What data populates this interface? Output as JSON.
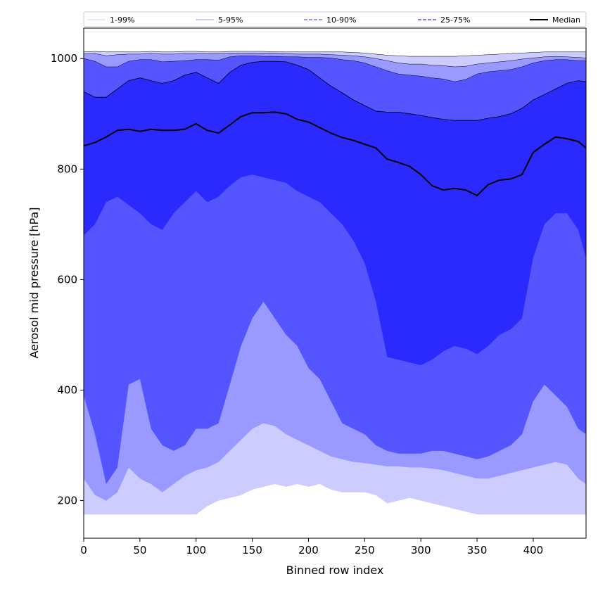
{
  "chart_data": {
    "type": "area",
    "title": "",
    "xlabel": "Binned row index",
    "ylabel": "Aerosol mid pressure [hPa]",
    "xlim": [
      0,
      447
    ],
    "ylim": [
      132,
      1055
    ],
    "xticks": [
      0,
      50,
      100,
      150,
      200,
      250,
      300,
      350,
      400
    ],
    "yticks": [
      200,
      400,
      600,
      800,
      1000
    ],
    "legend": {
      "position": "top",
      "entries": [
        {
          "label": "1-99%",
          "color": "#ccccff",
          "style": "thin"
        },
        {
          "label": "5-95%",
          "color": "#9999ff",
          "style": "thin"
        },
        {
          "label": "10-90%",
          "color": "#7777ff",
          "style": "dashed"
        },
        {
          "label": "25-75%",
          "color": "#5555ff",
          "style": "dashed"
        },
        {
          "label": "Median",
          "color": "#000000",
          "style": "solid"
        }
      ]
    },
    "colors": {
      "band_1_99": "#ccccff",
      "band_5_95": "#9999ff",
      "band_10_90": "#5555ff",
      "band_25_75": "#2a2aff",
      "median": "#000000"
    },
    "x": [
      0,
      10,
      20,
      30,
      40,
      50,
      60,
      70,
      80,
      90,
      100,
      110,
      120,
      130,
      140,
      150,
      160,
      170,
      180,
      190,
      200,
      210,
      220,
      230,
      240,
      250,
      260,
      270,
      280,
      290,
      300,
      310,
      320,
      330,
      340,
      350,
      360,
      370,
      380,
      390,
      400,
      410,
      420,
      430,
      440,
      447
    ],
    "series": [
      {
        "name": "1-99%",
        "role": "low",
        "values": [
          175,
          175,
          175,
          175,
          175,
          175,
          175,
          175,
          175,
          175,
          175,
          190,
          200,
          205,
          210,
          220,
          225,
          230,
          225,
          230,
          225,
          230,
          220,
          215,
          215,
          215,
          210,
          195,
          200,
          205,
          200,
          195,
          190,
          185,
          180,
          175,
          175,
          175,
          175,
          175,
          175,
          175,
          175,
          175,
          175,
          175
        ]
      },
      {
        "name": "1-99%",
        "role": "high",
        "values": [
          1012,
          1013,
          1012,
          1012,
          1012,
          1012,
          1013,
          1012,
          1012,
          1013,
          1013,
          1012,
          1012,
          1013,
          1013,
          1013,
          1013,
          1012,
          1012,
          1012,
          1012,
          1012,
          1012,
          1012,
          1011,
          1010,
          1008,
          1006,
          1005,
          1004,
          1004,
          1004,
          1004,
          1004,
          1005,
          1006,
          1007,
          1008,
          1009,
          1010,
          1011,
          1012,
          1012,
          1012,
          1012,
          1012
        ]
      },
      {
        "name": "5-95%",
        "role": "low",
        "values": [
          240,
          210,
          200,
          215,
          260,
          240,
          230,
          215,
          230,
          245,
          255,
          260,
          270,
          290,
          310,
          330,
          340,
          335,
          320,
          310,
          300,
          290,
          280,
          275,
          270,
          268,
          265,
          262,
          262,
          260,
          260,
          258,
          255,
          250,
          245,
          240,
          240,
          245,
          250,
          255,
          260,
          265,
          270,
          265,
          240,
          230
        ]
      },
      {
        "name": "5-95%",
        "role": "high",
        "values": [
          1008,
          1009,
          1005,
          1007,
          1008,
          1008,
          1009,
          1008,
          1008,
          1009,
          1009,
          1009,
          1009,
          1010,
          1010,
          1010,
          1010,
          1010,
          1009,
          1008,
          1008,
          1008,
          1007,
          1006,
          1005,
          1003,
          1000,
          996,
          992,
          990,
          990,
          988,
          987,
          985,
          986,
          990,
          992,
          994,
          996,
          999,
          1001,
          1003,
          1004,
          1003,
          1002,
          1001
        ]
      },
      {
        "name": "10-90%",
        "role": "low",
        "values": [
          390,
          320,
          230,
          260,
          410,
          420,
          330,
          300,
          290,
          300,
          330,
          330,
          340,
          410,
          480,
          530,
          560,
          530,
          500,
          480,
          440,
          420,
          380,
          340,
          330,
          320,
          300,
          290,
          285,
          285,
          285,
          290,
          290,
          285,
          280,
          275,
          280,
          290,
          300,
          320,
          380,
          410,
          390,
          370,
          330,
          320
        ]
      },
      {
        "name": "10-90%",
        "role": "high",
        "values": [
          1000,
          995,
          985,
          985,
          995,
          998,
          998,
          994,
          995,
          996,
          998,
          998,
          997,
          1003,
          1005,
          1005,
          1004,
          1004,
          1003,
          1003,
          1002,
          1002,
          1001,
          998,
          996,
          992,
          985,
          978,
          972,
          970,
          968,
          965,
          963,
          958,
          962,
          972,
          976,
          978,
          980,
          985,
          992,
          996,
          998,
          998,
          996,
          996
        ]
      },
      {
        "name": "25-75%",
        "role": "low",
        "values": [
          680,
          700,
          740,
          750,
          735,
          720,
          700,
          690,
          720,
          740,
          760,
          740,
          750,
          770,
          785,
          790,
          785,
          780,
          775,
          760,
          750,
          740,
          720,
          700,
          670,
          630,
          560,
          460,
          455,
          450,
          445,
          455,
          470,
          480,
          475,
          465,
          480,
          500,
          510,
          530,
          640,
          700,
          720,
          720,
          690,
          640
        ]
      },
      {
        "name": "25-75%",
        "role": "high",
        "values": [
          940,
          930,
          930,
          945,
          960,
          965,
          960,
          955,
          960,
          970,
          975,
          965,
          955,
          975,
          988,
          993,
          995,
          995,
          994,
          988,
          980,
          965,
          950,
          938,
          925,
          915,
          905,
          903,
          903,
          900,
          897,
          893,
          890,
          888,
          888,
          888,
          892,
          895,
          900,
          910,
          925,
          935,
          945,
          955,
          960,
          958
        ]
      },
      {
        "name": "Median",
        "role": "line",
        "values": [
          842,
          848,
          858,
          870,
          872,
          868,
          872,
          870,
          870,
          872,
          882,
          870,
          865,
          880,
          895,
          902,
          902,
          903,
          900,
          890,
          885,
          875,
          865,
          857,
          852,
          845,
          838,
          818,
          812,
          805,
          790,
          770,
          762,
          765,
          762,
          752,
          772,
          780,
          782,
          790,
          830,
          845,
          858,
          855,
          850,
          838
        ]
      }
    ]
  }
}
